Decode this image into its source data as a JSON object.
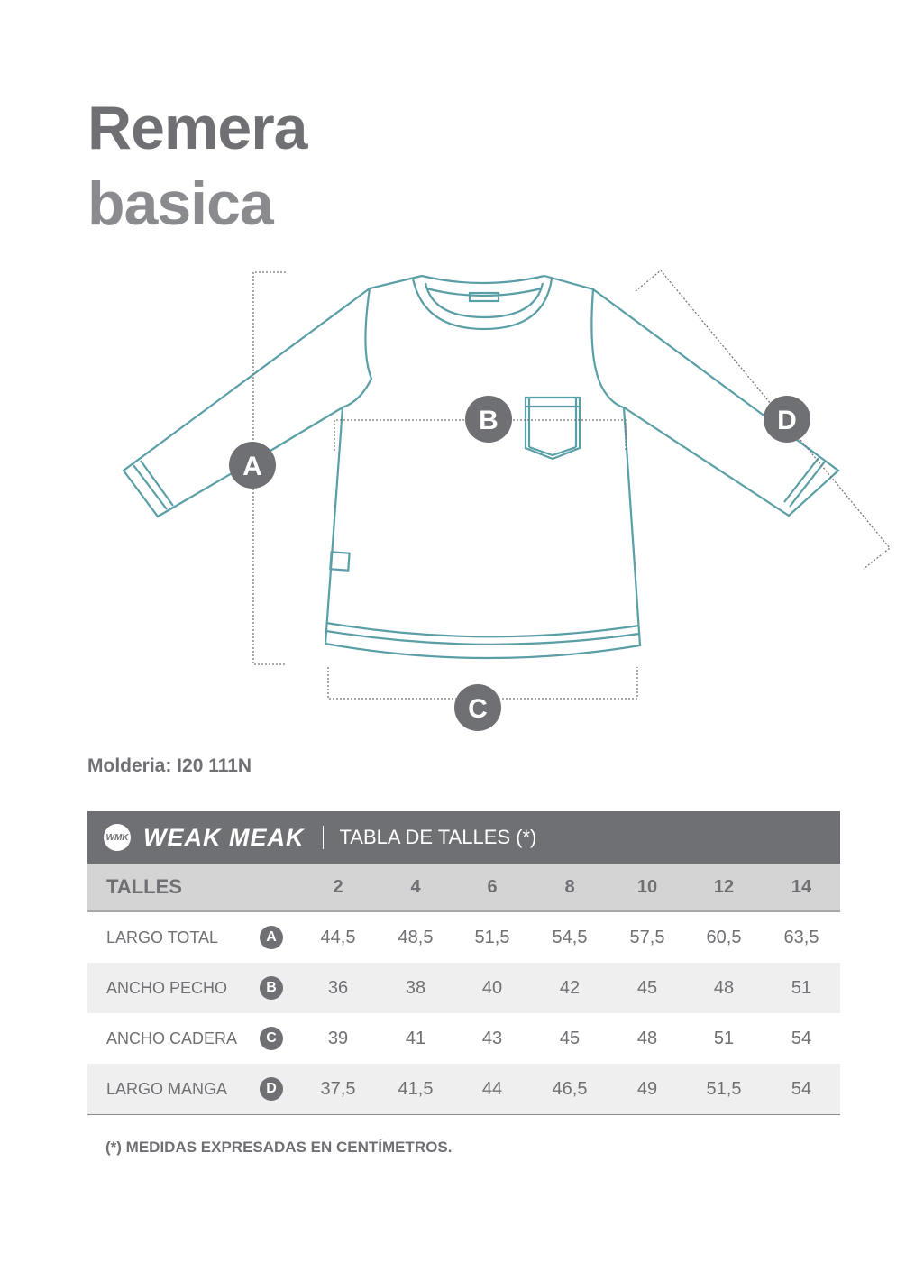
{
  "title": {
    "line1": "Remera",
    "line2": "basica"
  },
  "diagram": {
    "markers": [
      "A",
      "B",
      "C",
      "D"
    ],
    "line_color": "#5a9ea6",
    "marker_color": "#6f7074"
  },
  "moldeo": "Molderia: I20 111N",
  "table": {
    "brand": "WEAK MEAK",
    "brand_mark": "WMK",
    "title": "TABLA DE TALLES (*)",
    "header_label": "TALLES",
    "sizes": [
      "2",
      "4",
      "6",
      "8",
      "10",
      "12",
      "14"
    ],
    "rows": [
      {
        "label": "LARGO TOTAL",
        "marker": "A",
        "values": [
          "44,5",
          "48,5",
          "51,5",
          "54,5",
          "57,5",
          "60,5",
          "63,5"
        ]
      },
      {
        "label": "ANCHO PECHO",
        "marker": "B",
        "values": [
          "36",
          "38",
          "40",
          "42",
          "45",
          "48",
          "51"
        ]
      },
      {
        "label": "ANCHO CADERA",
        "marker": "C",
        "values": [
          "39",
          "41",
          "43",
          "45",
          "48",
          "51",
          "54"
        ]
      },
      {
        "label": "LARGO MANGA",
        "marker": "D",
        "values": [
          "37,5",
          "41,5",
          "44",
          "46,5",
          "49",
          "51,5",
          "54"
        ]
      }
    ],
    "header_color": "#6f7074",
    "subheader_color": "#d4d4d5"
  },
  "note": "(*) MEDIDAS EXPRESADAS EN CENTÍMETROS."
}
